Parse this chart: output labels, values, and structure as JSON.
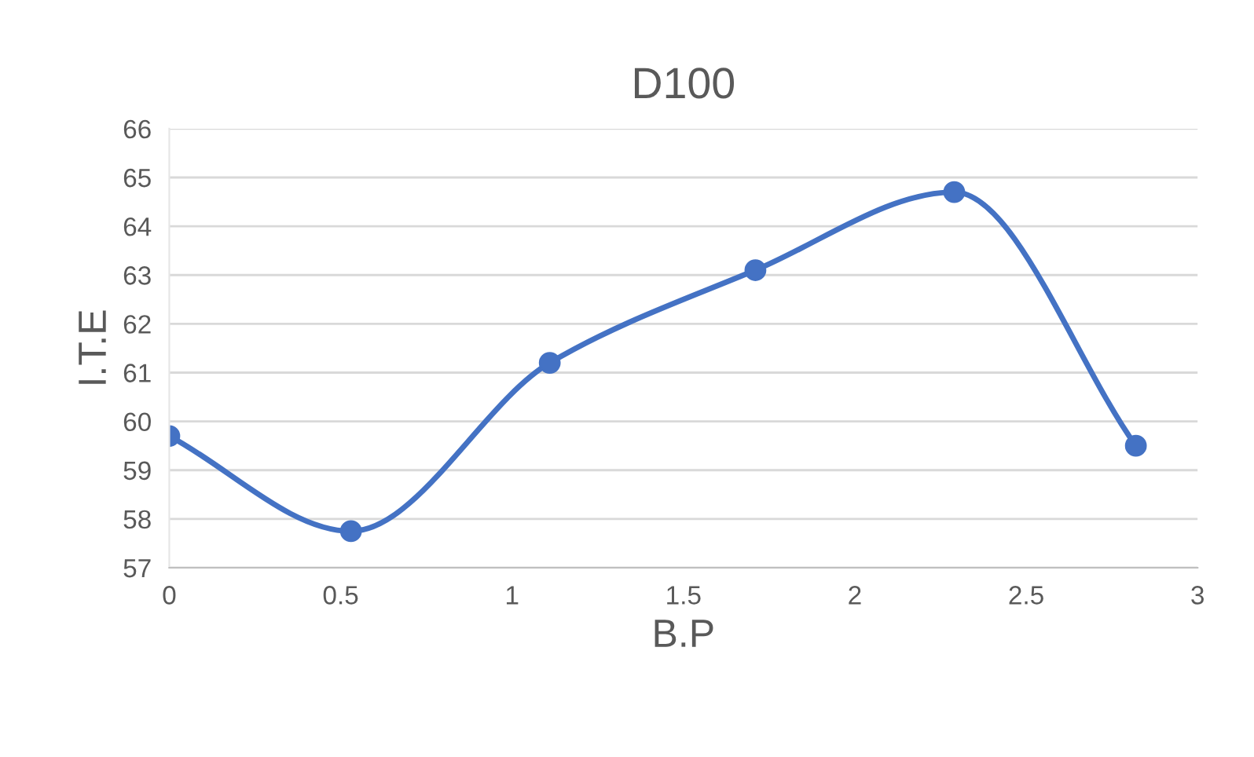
{
  "chart_data": {
    "type": "line",
    "title": "D100",
    "xlabel": "B.P",
    "ylabel": "I.T.E",
    "series": [
      {
        "color": "#4472c4",
        "x": [
          0,
          0.53,
          1.11,
          1.71,
          2.29,
          2.82
        ],
        "values": [
          59.7,
          57.75,
          61.2,
          63.1,
          64.7,
          59.5
        ]
      }
    ],
    "xlim": [
      0,
      3
    ],
    "xticks": [
      0,
      0.5,
      1,
      1.5,
      2,
      2.5,
      3
    ],
    "ylim": [
      57,
      66
    ],
    "yticks": [
      57,
      58,
      59,
      60,
      61,
      62,
      63,
      64,
      65,
      66
    ],
    "grid": "y",
    "marker": "circle",
    "line_style": "solid"
  }
}
